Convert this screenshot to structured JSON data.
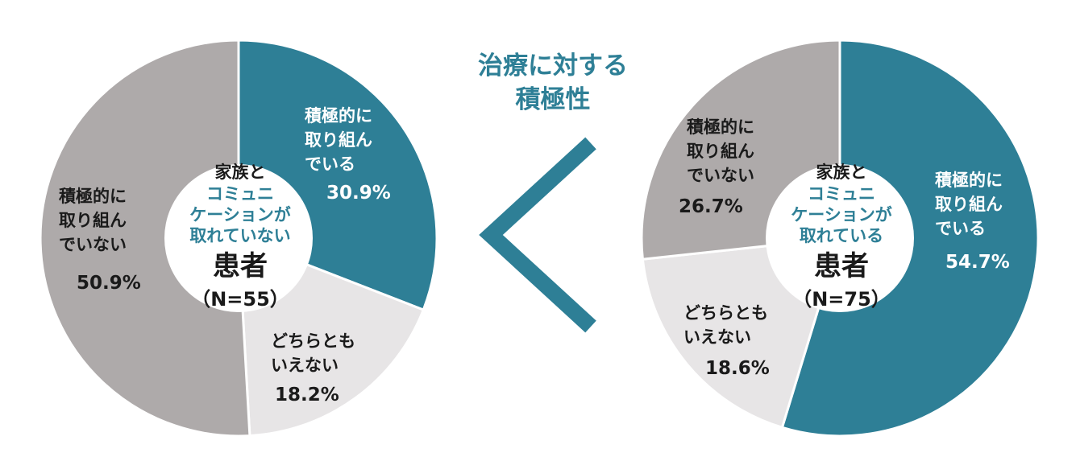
{
  "center_title": {
    "lines": [
      "治療に対する",
      "積極性"
    ]
  },
  "comparison_symbol": "<",
  "colors": {
    "teal": "#2e7f96",
    "light_gray": "#e7e5e6",
    "gray": "#aeaaaa",
    "text_dark": "#1a1a1a",
    "white": "#ffffff"
  },
  "chart_data": [
    {
      "type": "pie",
      "variant": "donut",
      "center_label": {
        "line1": "家族と",
        "line2": "コミュニ",
        "line3": "ケーションが",
        "line4": "取れていない",
        "main": "患者",
        "n": "（N=55）"
      },
      "slices": [
        {
          "label_lines": [
            "積極的に",
            "取り組ん",
            "でいる"
          ],
          "value": 30.9,
          "value_label": "30.9%",
          "color": "#2e7f96"
        },
        {
          "label_lines": [
            "どちらとも",
            "いえない"
          ],
          "value": 18.2,
          "value_label": "18.2%",
          "color": "#e7e5e6"
        },
        {
          "label_lines": [
            "積極的に",
            "取り組ん",
            "でいない"
          ],
          "value": 50.9,
          "value_label": "50.9%",
          "color": "#aeaaaa"
        }
      ]
    },
    {
      "type": "pie",
      "variant": "donut",
      "center_label": {
        "line1": "家族と",
        "line2": "コミュニ",
        "line3": "ケーションが",
        "line4": "取れている",
        "main": "患者",
        "n": "（N=75）"
      },
      "slices": [
        {
          "label_lines": [
            "積極的に",
            "取り組ん",
            "でいる"
          ],
          "value": 54.7,
          "value_label": "54.7%",
          "color": "#2e7f96"
        },
        {
          "label_lines": [
            "どちらとも",
            "いえない"
          ],
          "value": 18.6,
          "value_label": "18.6%",
          "color": "#e7e5e6"
        },
        {
          "label_lines": [
            "積極的に",
            "取り組ん",
            "でいない"
          ],
          "value": 26.7,
          "value_label": "26.7%",
          "color": "#aeaaaa"
        }
      ]
    }
  ]
}
